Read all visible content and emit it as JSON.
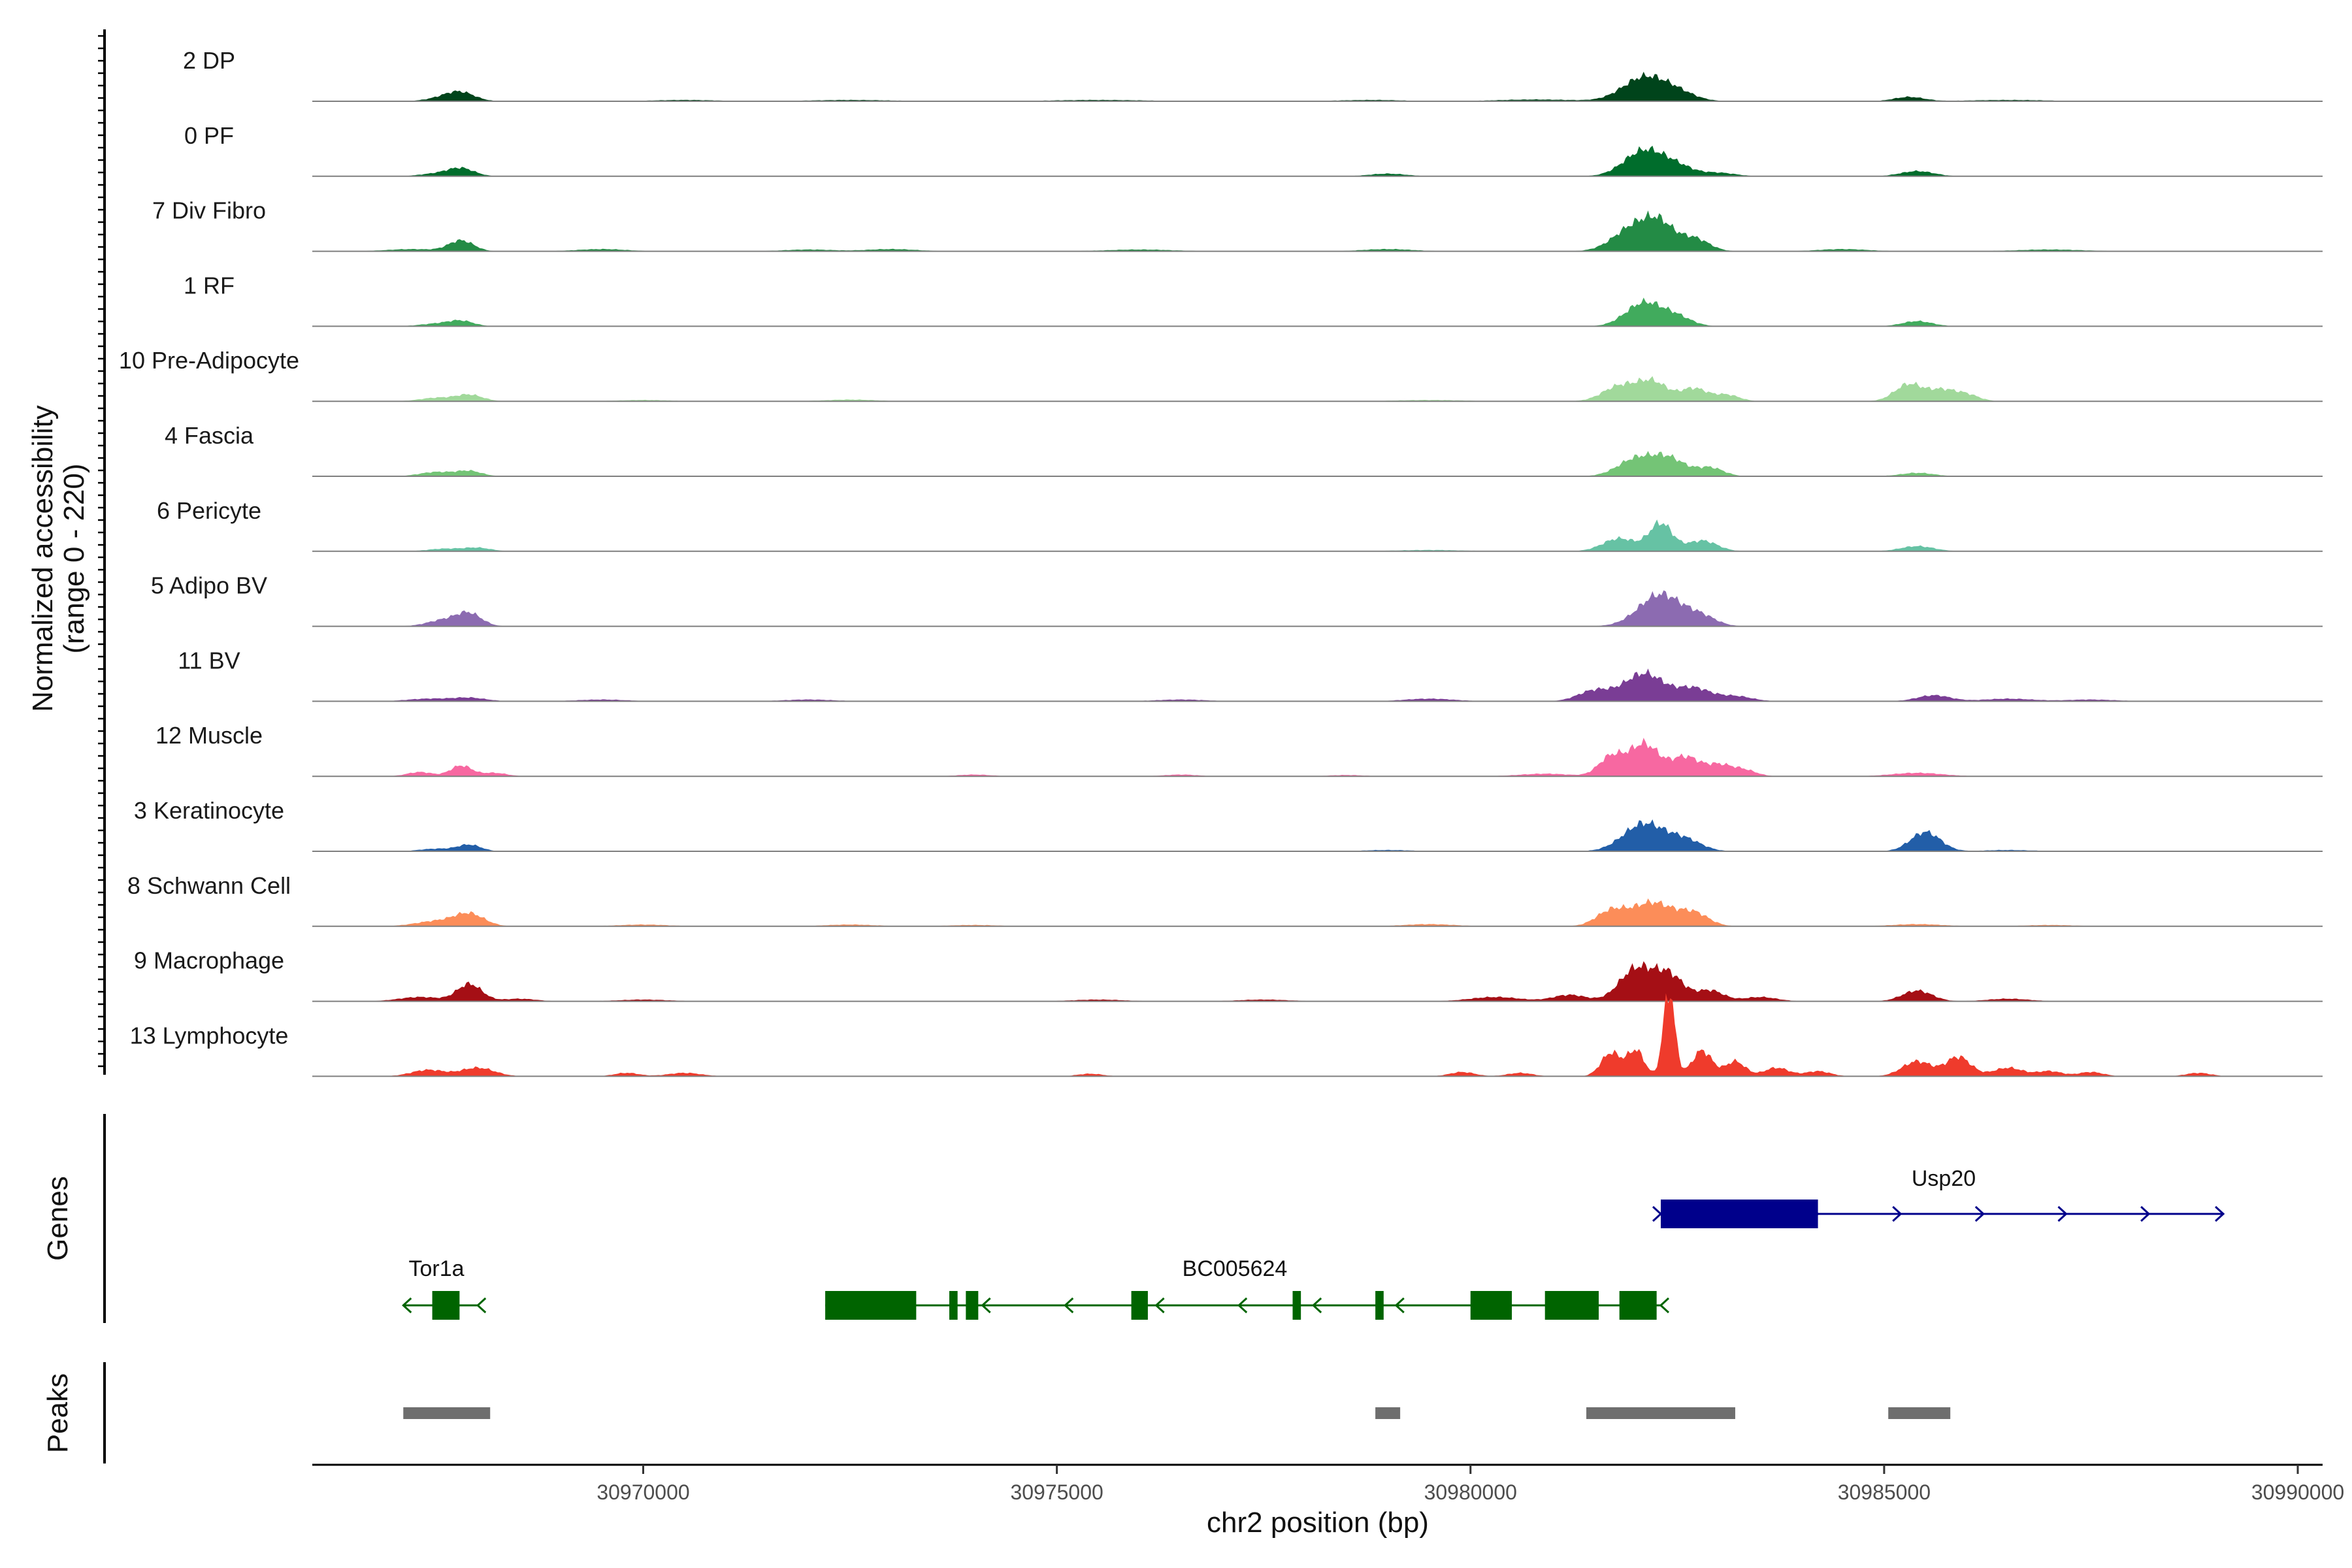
{
  "chart_data": {
    "type": "area",
    "title": "",
    "ylabel": "Normalized accessibility",
    "ylabel_range": "(range 0 - 220)",
    "ylim": [
      0,
      220
    ],
    "xlabel": "chr2 position (bp)",
    "xlim": [
      30966000,
      30990300
    ],
    "xticks": [
      30970000,
      30975000,
      30980000,
      30985000,
      30990000
    ],
    "xtick_labels": [
      "30970000",
      "30975000",
      "30980000",
      "30985000",
      "30990000"
    ],
    "grid": false,
    "series": [
      {
        "name": "2 DP",
        "color": "#00441b",
        "peaks": [
          [
            30967600,
            8,
            200
          ],
          [
            30967800,
            18,
            170
          ],
          [
            30970500,
            3,
            400
          ],
          [
            30972500,
            3,
            500
          ],
          [
            30975500,
            3,
            600
          ],
          [
            30978800,
            3,
            400
          ],
          [
            30980800,
            4,
            500
          ],
          [
            30982100,
            55,
            260
          ],
          [
            30982500,
            18,
            220
          ],
          [
            30985300,
            10,
            180
          ],
          [
            30986500,
            3,
            500
          ]
        ]
      },
      {
        "name": "0 PF",
        "color": "#006d2c",
        "peaks": [
          [
            30967500,
            6,
            200
          ],
          [
            30967800,
            18,
            160
          ],
          [
            30979000,
            6,
            220
          ],
          [
            30982100,
            60,
            240
          ],
          [
            30982500,
            20,
            200
          ],
          [
            30983000,
            8,
            200
          ],
          [
            30985400,
            12,
            200
          ]
        ]
      },
      {
        "name": "7 Div Fibro",
        "color": "#238b45",
        "peaks": [
          [
            30967200,
            5,
            300
          ],
          [
            30967800,
            25,
            150
          ],
          [
            30969500,
            5,
            300
          ],
          [
            30972000,
            4,
            300
          ],
          [
            30973000,
            5,
            300
          ],
          [
            30976000,
            4,
            400
          ],
          [
            30979000,
            5,
            300
          ],
          [
            30982000,
            60,
            250
          ],
          [
            30982300,
            45,
            170
          ],
          [
            30982700,
            30,
            180
          ],
          [
            30984500,
            5,
            300
          ],
          [
            30987000,
            4,
            400
          ]
        ]
      },
      {
        "name": "1 RF",
        "color": "#41ab5d",
        "peaks": [
          [
            30967500,
            6,
            200
          ],
          [
            30967800,
            12,
            150
          ],
          [
            30982100,
            55,
            220
          ],
          [
            30982500,
            20,
            180
          ],
          [
            30985400,
            12,
            180
          ]
        ]
      },
      {
        "name": "10 Pre-Adipocyte",
        "color": "#a1d99b",
        "peaks": [
          [
            30967500,
            8,
            200
          ],
          [
            30967900,
            15,
            160
          ],
          [
            30970000,
            3,
            300
          ],
          [
            30972500,
            4,
            300
          ],
          [
            30979500,
            3,
            400
          ],
          [
            30981800,
            35,
            200
          ],
          [
            30982200,
            45,
            180
          ],
          [
            30982700,
            30,
            160
          ],
          [
            30983100,
            15,
            150
          ],
          [
            30985300,
            40,
            170
          ],
          [
            30985700,
            25,
            160
          ],
          [
            30986000,
            15,
            150
          ]
        ]
      },
      {
        "name": "4 Fascia",
        "color": "#74c476",
        "peaks": [
          [
            30967500,
            10,
            200
          ],
          [
            30967900,
            12,
            150
          ],
          [
            30982000,
            40,
            220
          ],
          [
            30982400,
            40,
            200
          ],
          [
            30982900,
            20,
            160
          ],
          [
            30985400,
            8,
            200
          ]
        ]
      },
      {
        "name": "6 Pericyte",
        "color": "#66c2a4",
        "peaks": [
          [
            30967600,
            6,
            200
          ],
          [
            30968000,
            8,
            160
          ],
          [
            30979500,
            3,
            400
          ],
          [
            30981800,
            30,
            200
          ],
          [
            30982300,
            65,
            140
          ],
          [
            30982800,
            25,
            180
          ],
          [
            30985400,
            12,
            200
          ]
        ]
      },
      {
        "name": "5 Adipo BV",
        "color": "#8c6bb1",
        "peaks": [
          [
            30967600,
            15,
            200
          ],
          [
            30967900,
            28,
            150
          ],
          [
            30982300,
            75,
            260
          ],
          [
            30982800,
            20,
            180
          ]
        ]
      },
      {
        "name": "11 BV",
        "color": "#7a3d95",
        "peaks": [
          [
            30967400,
            6,
            250
          ],
          [
            30967900,
            8,
            200
          ],
          [
            30969500,
            4,
            300
          ],
          [
            30972000,
            4,
            300
          ],
          [
            30976500,
            4,
            300
          ],
          [
            30979500,
            6,
            300
          ],
          [
            30981500,
            25,
            200
          ],
          [
            30982100,
            65,
            240
          ],
          [
            30982700,
            30,
            200
          ],
          [
            30983200,
            12,
            200
          ],
          [
            30985600,
            14,
            200
          ],
          [
            30986500,
            6,
            300
          ],
          [
            30987500,
            4,
            300
          ]
        ]
      },
      {
        "name": "12 Muscle",
        "color": "#f768a1",
        "peaks": [
          [
            30967300,
            10,
            150
          ],
          [
            30967800,
            25,
            130
          ],
          [
            30968200,
            8,
            150
          ],
          [
            30974000,
            4,
            200
          ],
          [
            30976500,
            4,
            200
          ],
          [
            30978500,
            3,
            200
          ],
          [
            30980900,
            6,
            300
          ],
          [
            30981700,
            45,
            150
          ],
          [
            30982100,
            75,
            180
          ],
          [
            30982600,
            45,
            170
          ],
          [
            30983000,
            25,
            150
          ],
          [
            30983300,
            15,
            150
          ],
          [
            30985400,
            8,
            300
          ]
        ]
      },
      {
        "name": "3 Keratinocyte",
        "color": "#225ea8",
        "peaks": [
          [
            30967500,
            6,
            200
          ],
          [
            30967900,
            15,
            140
          ],
          [
            30979000,
            3,
            300
          ],
          [
            30982100,
            65,
            250
          ],
          [
            30982600,
            25,
            200
          ],
          [
            30985500,
            45,
            180
          ],
          [
            30986500,
            3,
            300
          ]
        ]
      },
      {
        "name": "8 Schwann Cell",
        "color": "#fc8d59",
        "peaks": [
          [
            30967500,
            12,
            250
          ],
          [
            30967900,
            28,
            180
          ],
          [
            30970000,
            4,
            300
          ],
          [
            30972500,
            4,
            300
          ],
          [
            30974000,
            3,
            300
          ],
          [
            30979500,
            5,
            300
          ],
          [
            30981700,
            35,
            180
          ],
          [
            30982200,
            55,
            240
          ],
          [
            30982700,
            30,
            180
          ],
          [
            30985400,
            5,
            300
          ],
          [
            30987000,
            3,
            300
          ]
        ]
      },
      {
        "name": "9 Macrophage",
        "color": "#a50f15",
        "peaks": [
          [
            30967300,
            10,
            250
          ],
          [
            30967900,
            40,
            150
          ],
          [
            30968500,
            6,
            200
          ],
          [
            30970000,
            4,
            300
          ],
          [
            30975500,
            4,
            300
          ],
          [
            30977500,
            4,
            300
          ],
          [
            30980300,
            10,
            300
          ],
          [
            30981200,
            15,
            200
          ],
          [
            30982000,
            75,
            200
          ],
          [
            30982400,
            60,
            180
          ],
          [
            30982900,
            25,
            160
          ],
          [
            30983500,
            10,
            200
          ],
          [
            30985400,
            25,
            180
          ],
          [
            30986500,
            6,
            250
          ]
        ]
      },
      {
        "name": "13 Lymphocyte",
        "color": "#ef3b2c",
        "peaks": [
          [
            30967400,
            15,
            200
          ],
          [
            30968000,
            20,
            200
          ],
          [
            30969800,
            8,
            150
          ],
          [
            30970500,
            8,
            200
          ],
          [
            30975400,
            6,
            150
          ],
          [
            30979900,
            10,
            150
          ],
          [
            30980600,
            8,
            150
          ],
          [
            30981700,
            55,
            120
          ],
          [
            30982000,
            60,
            100
          ],
          [
            30982400,
            200,
            70
          ],
          [
            30982800,
            60,
            120
          ],
          [
            30983200,
            35,
            120
          ],
          [
            30983700,
            20,
            150
          ],
          [
            30984200,
            12,
            150
          ],
          [
            30985400,
            35,
            180
          ],
          [
            30985900,
            45,
            150
          ],
          [
            30986500,
            20,
            180
          ],
          [
            30987000,
            12,
            150
          ],
          [
            30987500,
            10,
            150
          ],
          [
            30988800,
            8,
            150
          ]
        ]
      }
    ],
    "genes_panel_label": "Genes",
    "genes": [
      {
        "name": "Usp20",
        "strand": "+",
        "color": "#00008b",
        "start": 30982300,
        "end": 30989100,
        "exons": [
          [
            30982300,
            30984200
          ]
        ],
        "arrows": [
          30982300,
          30984200,
          30985200,
          30986200,
          30987200,
          30988200,
          30989100
        ]
      },
      {
        "name": "Tor1a",
        "strand": "-",
        "color": "#006400",
        "start": 30967100,
        "end": 30968000,
        "exons": [
          [
            30967450,
            30967780
          ]
        ],
        "arrows": [
          30967100,
          30968000
        ]
      },
      {
        "name": "BC005624",
        "strand": "-",
        "color": "#006400",
        "start": 30972200,
        "end": 30982300,
        "exons": [
          [
            30972200,
            30973300
          ],
          [
            30973700,
            30973800
          ],
          [
            30973900,
            30974050
          ],
          [
            30975900,
            30976100
          ],
          [
            30977850,
            30977950
          ],
          [
            30978850,
            30978950
          ],
          [
            30980000,
            30980500
          ],
          [
            30980900,
            30981550
          ],
          [
            30981800,
            30982250
          ]
        ],
        "arrows": [
          30974100,
          30975100,
          30976200,
          30977200,
          30978100,
          30979100,
          30982300
        ]
      }
    ],
    "peaks_panel_label": "Peaks",
    "peak_regions": [
      [
        30967100,
        30968150
      ],
      [
        30978850,
        30979150
      ],
      [
        30981400,
        30983200
      ],
      [
        30985050,
        30985800
      ]
    ]
  }
}
